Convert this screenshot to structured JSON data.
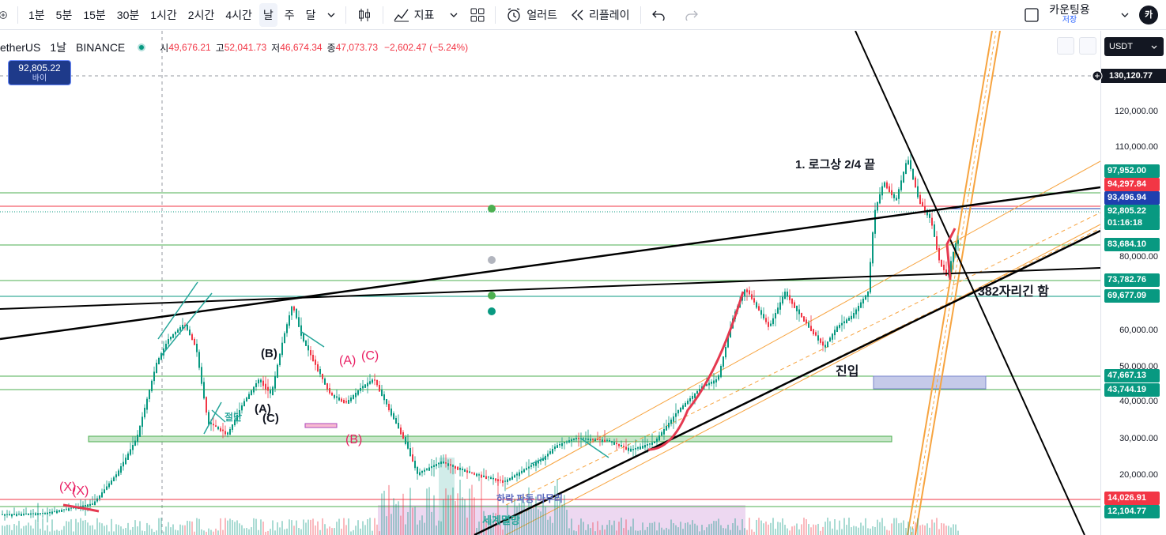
{
  "toolbar": {
    "intervals": [
      "1분",
      "5분",
      "15분",
      "30분",
      "1시간",
      "2시간",
      "4시간",
      "날",
      "주",
      "달"
    ],
    "active_interval": "날",
    "indicators_label": "지표",
    "alert_label": "얼러트",
    "replay_label": "리플레이",
    "counting_label": "카운팅용",
    "save_label": "저장",
    "avatar_label": "카"
  },
  "legend": {
    "symbol": "etherUS",
    "timeframe": "1날",
    "exchange": "BINANCE",
    "open_label": "시",
    "open": "49,676.21",
    "high_label": "고",
    "high": "52,041.73",
    "low_label": "저",
    "low": "46,674.34",
    "close_label": "종",
    "close": "47,073.73",
    "change": "−2,602.47 (−5.24%)"
  },
  "bid": {
    "price": "92,805.22",
    "label": "바이"
  },
  "currency": "USDT",
  "axis": {
    "ticks": [
      "120,000.00",
      "110,000.00",
      "80,000.00",
      "60,000.00",
      "50,000.00",
      "40,000.00",
      "30,000.00",
      "20,000.00"
    ],
    "crosshair_price": "130,120.77",
    "price_labels": [
      {
        "text": "97,952.00",
        "color": "#089981"
      },
      {
        "text": "94,297.84",
        "color": "#f23645"
      },
      {
        "text": "93,496.94",
        "color": "#1e40af"
      },
      {
        "text": "92,805.22",
        "color": "#089981"
      },
      {
        "text": "01:16:18",
        "color": "#089981"
      },
      {
        "text": "83,684.10",
        "color": "#089981"
      },
      {
        "text": "73,782.76",
        "color": "#089981"
      },
      {
        "text": "69,677.09",
        "color": "#089981"
      },
      {
        "text": "47,667.13",
        "color": "#089981"
      },
      {
        "text": "43,744.19",
        "color": "#089981"
      },
      {
        "text": "14,026.91",
        "color": "#f23645"
      },
      {
        "text": "12,104.77",
        "color": "#089981"
      }
    ]
  },
  "annotations": {
    "log_top": "1. 로그상 2/4 끝",
    "fib_382": "382자리긴 함",
    "entry": "진입",
    "wave_b_black": "(B)",
    "wave_a_black": "(A)",
    "wave_c_black": "(C)",
    "wave_a_red": "(A)",
    "wave_c_red": "(C)",
    "wave_b_red": "(B)",
    "wave_x1": "(X)",
    "wave_x2": "(X)",
    "cut_label": "절단",
    "bottom_a": "하락 파동 마무리",
    "bottom_b": "세계멸망"
  },
  "colors": {
    "up": "#089981",
    "down": "#f23645",
    "trend": "#000000",
    "fib": "#f7a440",
    "level": "#4caf50",
    "wave_red": "#e91e63"
  }
}
